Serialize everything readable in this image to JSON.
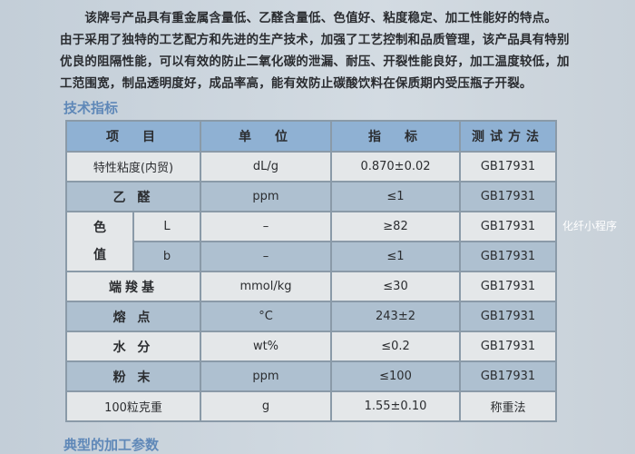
{
  "paragraph": [
    "　　该牌号产品具有重金属含量低、乙醛含量低、色值好、粘度稳定、加工性能好的特点。",
    "由于采用了独特的工艺配方和先进的生产技术，加强了工艺控制和品质管理，该产品具有特别",
    "优良的阻隔性能，可以有效的防止二氧化碳的泄漏、耐压、开裂性能良好，加工温度较低，加",
    "工范围宽，制品透明度好，成品率高，能有效防止碳酸饮料在保质期内受压瓶子开裂。"
  ],
  "section_title": "技术指标",
  "next_section_title": "典型的加工参数",
  "watermark": "化纤小程序",
  "table": {
    "headers": [
      "项　目",
      "单　位",
      "指　标",
      "测试方法"
    ],
    "rows": [
      {
        "item": "特性粘度(内贸)",
        "unit": "dL/g",
        "spec": "0.870±0.02",
        "method": "GB17931"
      },
      {
        "item": "乙 醛",
        "unit": "ppm",
        "spec": "≤1",
        "method": "GB17931"
      },
      {
        "item": "色值",
        "sub": "L",
        "unit": "–",
        "spec": "≥82",
        "method": "GB17931"
      },
      {
        "sub": "b",
        "unit": "–",
        "spec": "≤1",
        "method": "GB17931"
      },
      {
        "item": "端羧基",
        "unit": "mmol/kg",
        "spec": "≤30",
        "method": "GB17931"
      },
      {
        "item": "熔 点",
        "unit": "°C",
        "spec": "243±2",
        "method": "GB17931"
      },
      {
        "item": "水 分",
        "unit": "wt%",
        "spec": "≤0.2",
        "method": "GB17931"
      },
      {
        "item": "粉 末",
        "unit": "ppm",
        "spec": "≤100",
        "method": "GB17931"
      },
      {
        "item": "100粒克重",
        "unit": "g",
        "spec": "1.55±0.10",
        "method": "称重法"
      }
    ]
  }
}
